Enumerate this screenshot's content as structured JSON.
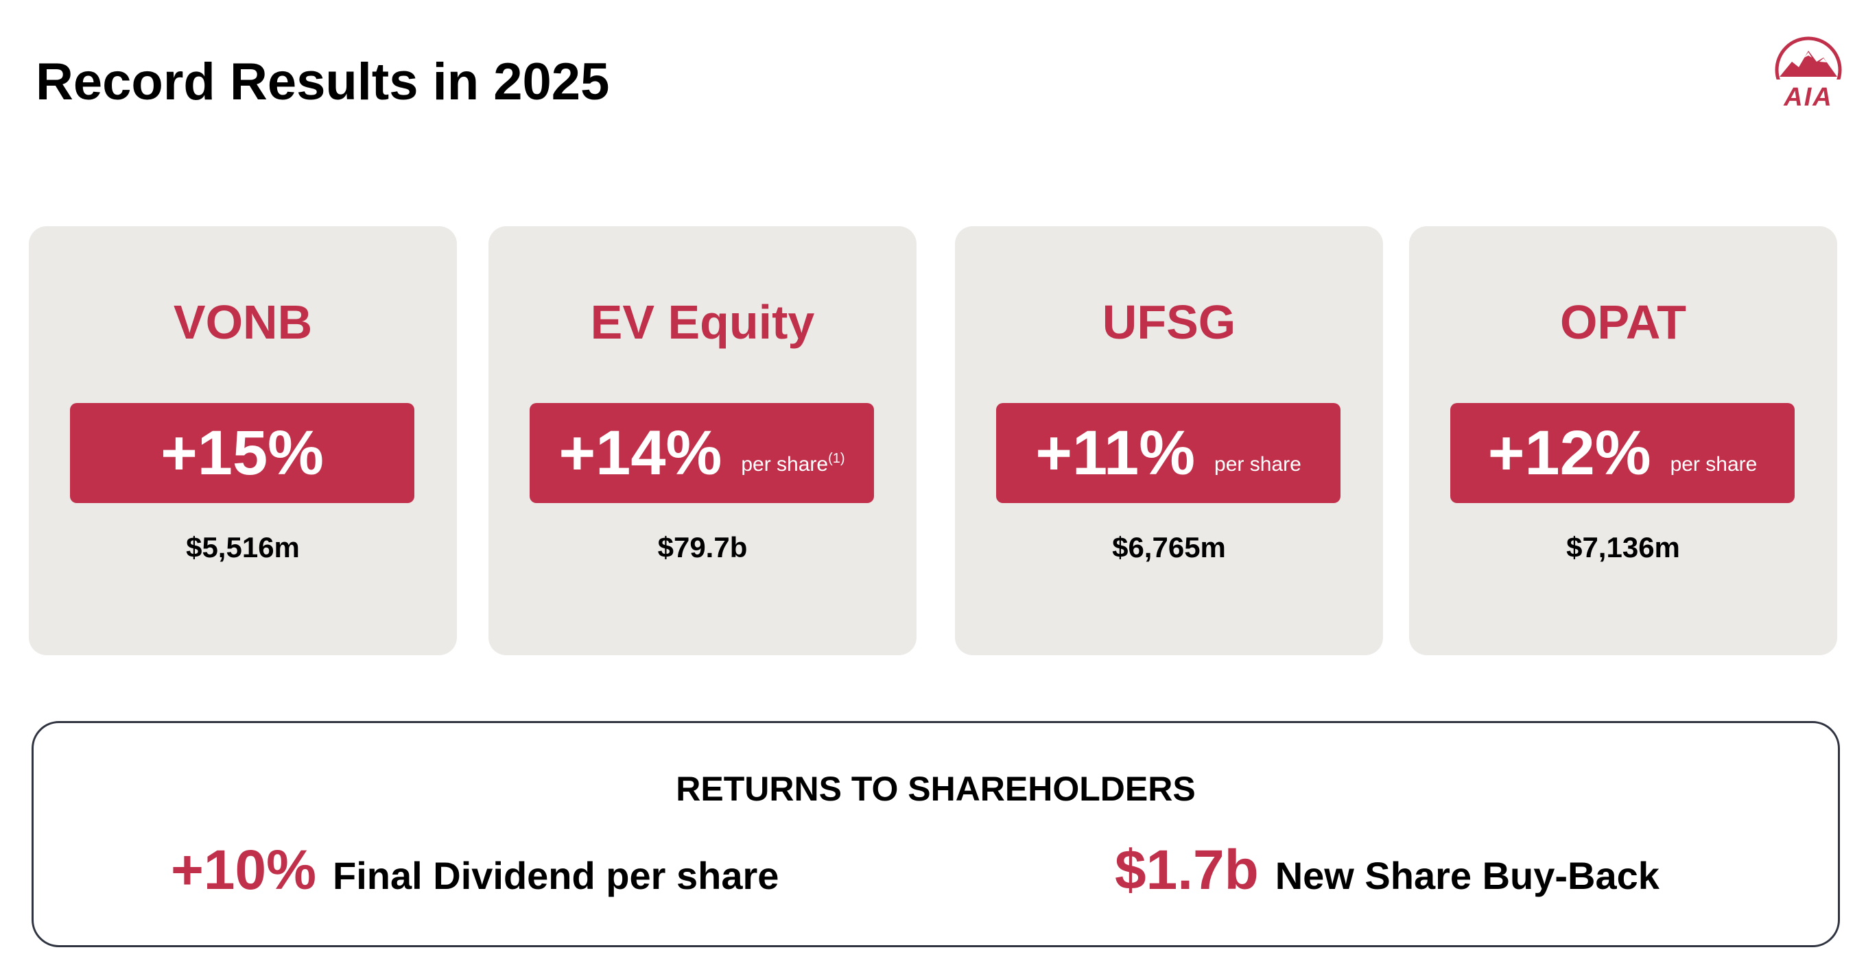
{
  "slide": {
    "title": "Record Results in 2025"
  },
  "logo": {
    "text": "AIA",
    "color": "#c1304a"
  },
  "cards": [
    {
      "title": "VONB",
      "change": "+15%",
      "suffix": "",
      "footnote": "",
      "value": "$5,516m"
    },
    {
      "title": "EV Equity",
      "change": "+14%",
      "suffix": "per share",
      "footnote": "(1)",
      "value": "$79.7b"
    },
    {
      "title": "UFSG",
      "change": "+11%",
      "suffix": "per share",
      "footnote": "",
      "value": "$6,765m"
    },
    {
      "title": "OPAT",
      "change": "+12%",
      "suffix": "per share",
      "footnote": "",
      "value": "$7,136m"
    }
  ],
  "returns": {
    "title": "RETURNS TO SHAREHOLDERS",
    "items": [
      {
        "value": "+10%",
        "label": "Final Dividend per share"
      },
      {
        "value": "$1.7b",
        "label": "New Share Buy-Back"
      }
    ]
  },
  "colors": {
    "accent": "#c1304a",
    "card_background": "#eceae7",
    "text": "#000000",
    "border": "#2f3440"
  }
}
